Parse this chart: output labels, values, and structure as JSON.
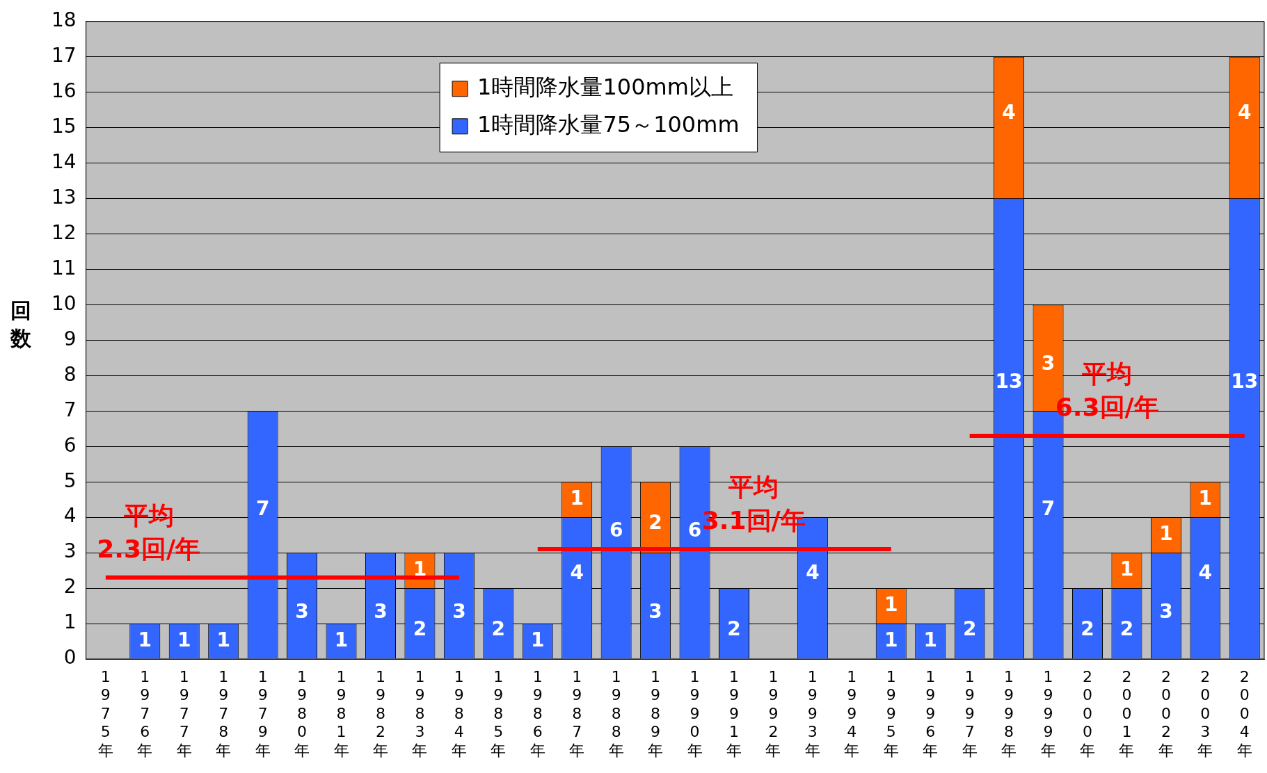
{
  "chart_data": {
    "type": "bar",
    "ylabel": "回数",
    "stacked": true,
    "grid": "y",
    "legend": "top",
    "categories": [
      "1975年",
      "1976年",
      "1977年",
      "1978年",
      "1979年",
      "1980年",
      "1981年",
      "1982年",
      "1983年",
      "1984年",
      "1985年",
      "1986年",
      "1987年",
      "1988年",
      "1989年",
      "1990年",
      "1991年",
      "1992年",
      "1993年",
      "1994年",
      "1995年",
      "1996年",
      "1997年",
      "1998年",
      "1999年",
      "2000年",
      "2001年",
      "2002年",
      "2003年",
      "2004年"
    ],
    "ylim": [
      0,
      18
    ],
    "yticks": [
      0,
      1,
      2,
      3,
      4,
      5,
      6,
      7,
      8,
      9,
      10,
      11,
      12,
      13,
      14,
      15,
      16,
      17,
      18
    ],
    "series": [
      {
        "name": "1時間降水量75～100mm",
        "color": "#3366ff",
        "values": [
          null,
          1,
          1,
          1,
          7,
          3,
          1,
          3,
          2,
          3,
          2,
          1,
          4,
          6,
          3,
          6,
          2,
          null,
          4,
          null,
          1,
          1,
          2,
          13,
          7,
          2,
          2,
          3,
          4,
          13
        ],
        "value_labels": [
          null,
          "1",
          "1",
          "1",
          "7",
          "3",
          "1",
          "3",
          "2",
          "3",
          "2",
          "1",
          "4",
          "6",
          "3",
          "6",
          "2",
          null,
          "4",
          null,
          "1",
          "1",
          "2",
          "13",
          "7",
          "2",
          "2",
          "3",
          "4",
          "13"
        ]
      },
      {
        "name": "1時間降水量100mm以上",
        "color": "#ff6600",
        "values": [
          null,
          null,
          null,
          null,
          null,
          null,
          null,
          null,
          1,
          null,
          null,
          null,
          1,
          null,
          2,
          null,
          null,
          null,
          null,
          null,
          1,
          null,
          null,
          4,
          3,
          null,
          1,
          1,
          1,
          4
        ],
        "value_labels": [
          null,
          null,
          null,
          null,
          null,
          null,
          null,
          null,
          "1",
          null,
          null,
          null,
          "1",
          null,
          "2",
          null,
          null,
          null,
          null,
          null,
          "1",
          null,
          null,
          "4",
          "3",
          null,
          "1",
          "1",
          "1",
          "4"
        ]
      },
      {
        "type": "line",
        "name": "平均 2.3回/年",
        "color": "#ff0000",
        "values": [
          2.3,
          2.3,
          2.3,
          2.3,
          2.3,
          2.3,
          2.3,
          2.3,
          2.3,
          2.3,
          null,
          null,
          null,
          null,
          null,
          null,
          null,
          null,
          null,
          null,
          null,
          null,
          null,
          null,
          null,
          null,
          null,
          null,
          null,
          null
        ]
      },
      {
        "type": "line",
        "name": "平均 3.1回/年",
        "color": "#ff0000",
        "values": [
          null,
          null,
          null,
          null,
          null,
          null,
          null,
          null,
          null,
          null,
          null,
          3.1,
          3.1,
          3.1,
          3.1,
          3.1,
          3.1,
          3.1,
          3.1,
          3.1,
          3.1,
          null,
          null,
          null,
          null,
          null,
          null,
          null,
          null,
          null
        ]
      },
      {
        "type": "line",
        "name": "平均 6.3回/年",
        "color": "#ff0000",
        "values": [
          null,
          null,
          null,
          null,
          null,
          null,
          null,
          null,
          null,
          null,
          null,
          null,
          null,
          null,
          null,
          null,
          null,
          null,
          null,
          null,
          null,
          null,
          6.3,
          6.3,
          6.3,
          6.3,
          6.3,
          6.3,
          6.3,
          6.3
        ]
      }
    ]
  }
}
